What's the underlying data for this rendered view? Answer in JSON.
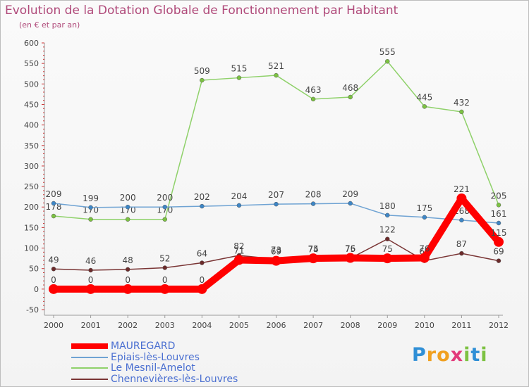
{
  "header": {
    "title": "Evolution de la Dotation Globale de Fonctionnement par Habitant",
    "subtitle": "(en € et par an)"
  },
  "logo": {
    "text": "Proxiti",
    "letters": [
      "P",
      "r",
      "o",
      "x",
      "i",
      "t",
      "i"
    ],
    "colors": [
      "#2f8fd6",
      "#f0a020",
      "#f0a020",
      "#e23a7a",
      "#7dc242",
      "#2f8fd6",
      "#7dc242"
    ]
  },
  "chart_data": {
    "type": "line",
    "x": [
      2000,
      2001,
      2002,
      2003,
      2004,
      2005,
      2006,
      2007,
      2008,
      2009,
      2010,
      2011,
      2012
    ],
    "xlabels": [
      "2000",
      "2001",
      "2002",
      "2003",
      "2004",
      "2005",
      "2006",
      "2007",
      "2008",
      "2009",
      "2010",
      "2011",
      "2012"
    ],
    "ylim": [
      -50,
      600
    ],
    "yticks": [
      -50,
      0,
      50,
      100,
      150,
      200,
      250,
      300,
      350,
      400,
      450,
      500,
      550,
      600
    ],
    "yticklabels": [
      "-50",
      "0",
      "50",
      "100",
      "150",
      "200",
      "250",
      "300",
      "350",
      "400",
      "450",
      "500",
      "550",
      "600"
    ],
    "grid": false,
    "legend_position": "bottom-left",
    "series": [
      {
        "name": "Le Mesnil-Amelot",
        "color": "#8fd16a",
        "marker": "#7cc242",
        "values": [
          178,
          170,
          170,
          170,
          509,
          515,
          521,
          463,
          468,
          555,
          445,
          432,
          205
        ],
        "labels": [
          "178",
          "170",
          "170",
          "170",
          "509",
          "515",
          "521",
          "463",
          "468",
          "555",
          "445",
          "432",
          "205"
        ]
      },
      {
        "name": "Epiais-lès-Louvres",
        "color": "#6fa3d3",
        "marker": "#3d86c6",
        "values": [
          209,
          199,
          200,
          200,
          202,
          204,
          207,
          208,
          209,
          180,
          175,
          168,
          161
        ],
        "labels": [
          "209",
          "199",
          "200",
          "200",
          "202",
          "204",
          "207",
          "208",
          "209",
          "180",
          "175",
          "168",
          "161"
        ]
      },
      {
        "name": "Chennevières-lès-Louvres",
        "color": "#7a3535",
        "marker": "#6b2a2a",
        "values": [
          49,
          46,
          48,
          52,
          64,
          82,
          73,
          74,
          75,
          122,
          69,
          87,
          69
        ],
        "labels": [
          "49",
          "46",
          "48",
          "52",
          "64",
          "82",
          "73",
          "74",
          "75",
          "122",
          "69",
          "87",
          "69"
        ]
      },
      {
        "name": "MAUREGARD",
        "color": "#ff0000",
        "marker": "#ff0000",
        "values": [
          0,
          0,
          0,
          0,
          0,
          71,
          69,
          75,
          76,
          75,
          76,
          221,
          115
        ],
        "labels": [
          "0",
          "0",
          "0",
          "0",
          "0",
          "71",
          "69",
          "75",
          "76",
          "75",
          "76",
          "221",
          "115"
        ]
      }
    ],
    "legend": [
      "MAUREGARD",
      "Epiais-lès-Louvres",
      "Le Mesnil-Amelot",
      "Chennevières-lès-Louvres"
    ]
  }
}
